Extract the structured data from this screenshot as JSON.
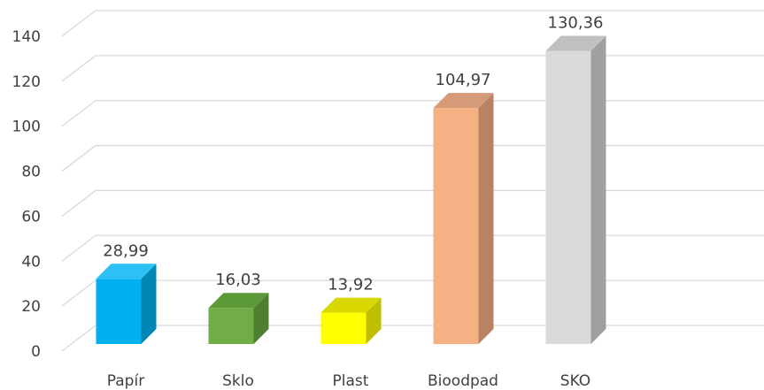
{
  "chart_data": {
    "type": "bar",
    "title": "",
    "xlabel": "",
    "ylabel": "",
    "categories": [
      "Papír",
      "Sklo",
      "Plast",
      "Bioodpad",
      "SKO"
    ],
    "values": [
      28.99,
      16.03,
      13.92,
      104.97,
      130.36
    ],
    "value_labels": [
      "28,99",
      "16,03",
      "13,92",
      "104,97",
      "130,36"
    ],
    "ylim": [
      0,
      140
    ],
    "yticks": [
      0,
      20,
      40,
      60,
      80,
      100,
      120,
      140
    ],
    "grid": true,
    "legend": "none",
    "colors": {
      "front": [
        "#00b0f0",
        "#70ad47",
        "#ffff00",
        "#f4b183",
        "#d9d9d9"
      ],
      "side": [
        "#0086b4",
        "#507e32",
        "#bfbf00",
        "#b98263",
        "#a0a0a0"
      ],
      "top": [
        "#2bc1f5",
        "#5b9a37",
        "#d8d800",
        "#d59a78",
        "#c0c0c0"
      ]
    }
  }
}
